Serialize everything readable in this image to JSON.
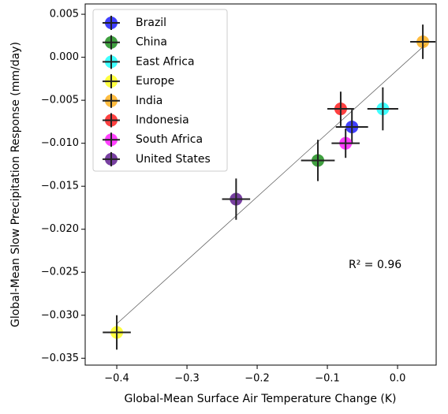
{
  "chart_data": {
    "type": "scatter",
    "x_label": "Global-Mean Surface Air Temperature Change (K)",
    "y_label": "Global-Mean Slow Precipitation Response (mm/day)",
    "annotation": "R² = 0.96",
    "xlim": [
      -0.445,
      0.055
    ],
    "ylim": [
      -0.0358,
      0.0062
    ],
    "xticks": [
      {
        "value": -0.4,
        "label": "−0.4"
      },
      {
        "value": -0.3,
        "label": "−0.3"
      },
      {
        "value": -0.2,
        "label": "−0.2"
      },
      {
        "value": -0.1,
        "label": "−0.1"
      },
      {
        "value": 0,
        "label": "0.0"
      }
    ],
    "yticks": [
      {
        "value": 0.005,
        "label": "0.005"
      },
      {
        "value": 0,
        "label": "0.000"
      },
      {
        "value": -0.005,
        "label": "−0.005"
      },
      {
        "value": -0.01,
        "label": "−0.010"
      },
      {
        "value": -0.015,
        "label": "−0.015"
      },
      {
        "value": -0.02,
        "label": "−0.020"
      },
      {
        "value": -0.025,
        "label": "−0.025"
      },
      {
        "value": -0.03,
        "label": "−0.030"
      },
      {
        "value": -0.035,
        "label": "−0.035"
      }
    ],
    "legend": "upper left",
    "fit": {
      "x": [
        -0.4,
        0.04
      ],
      "y": [
        -0.031,
        0.0015
      ]
    },
    "series": [
      {
        "name": "Brazil",
        "color": "#0000ff",
        "x": [
          -0.065
        ],
        "y": [
          -0.0081
        ],
        "xerr": [
          0.023
        ],
        "yerr": [
          0.002
        ]
      },
      {
        "name": "China",
        "color": "#008000",
        "x": [
          -0.1135
        ],
        "y": [
          -0.012
        ],
        "xerr": [
          0.024
        ],
        "yerr": [
          0.0024
        ]
      },
      {
        "name": "East Africa",
        "color": "#00ffff",
        "x": [
          -0.021
        ],
        "y": [
          -0.006
        ],
        "xerr": [
          0.022
        ],
        "yerr": [
          0.0025
        ]
      },
      {
        "name": "Europe",
        "color": "#ffff00",
        "x": [
          -0.4
        ],
        "y": [
          -0.032
        ],
        "xerr": [
          0.02
        ],
        "yerr": [
          0.002
        ]
      },
      {
        "name": "India",
        "color": "#ffa500",
        "x": [
          0.036
        ],
        "y": [
          0.0018
        ],
        "xerr": [
          0.018
        ],
        "yerr": [
          0.002
        ]
      },
      {
        "name": "Indonesia",
        "color": "#ff0000",
        "x": [
          -0.081
        ],
        "y": [
          -0.006
        ],
        "xerr": [
          0.019
        ],
        "yerr": [
          0.002
        ]
      },
      {
        "name": "South Africa",
        "color": "#ff00ff",
        "x": [
          -0.074
        ],
        "y": [
          -0.01
        ],
        "xerr": [
          0.02
        ],
        "yerr": [
          0.0017
        ]
      },
      {
        "name": "United States",
        "color": "#4b0082",
        "x": [
          -0.23
        ],
        "y": [
          -0.0165
        ],
        "xerr": [
          0.02
        ],
        "yerr": [
          0.0024
        ]
      }
    ]
  }
}
